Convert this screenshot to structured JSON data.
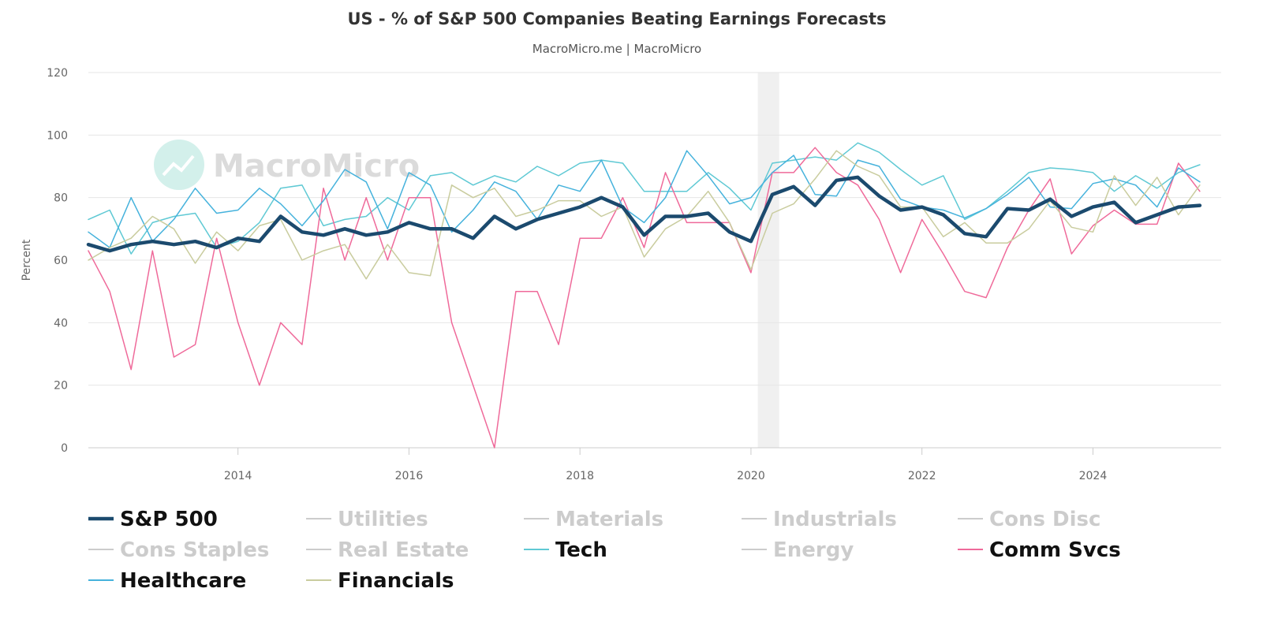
{
  "chart_data": {
    "type": "line",
    "title": "US - % of S&P 500 Companies Beating Earnings Forecasts",
    "subtitle": "MacroMicro.me | MacroMicro",
    "watermark": "MacroMicro",
    "ylabel": "Percent",
    "ylim": [
      0,
      120
    ],
    "yticks": [
      0,
      20,
      40,
      60,
      80,
      100,
      120
    ],
    "xlim": [
      2012.25,
      2025.5
    ],
    "xticks": [
      "2014",
      "2016",
      "2018",
      "2020",
      "2022",
      "2024"
    ],
    "recession_band": [
      2020.08,
      2020.33
    ],
    "grid": true,
    "legend_position": "bottom",
    "x": [
      2012.25,
      2012.5,
      2012.75,
      2013,
      2013.25,
      2013.5,
      2013.75,
      2014,
      2014.25,
      2014.5,
      2014.75,
      2015,
      2015.25,
      2015.5,
      2015.75,
      2016,
      2016.25,
      2016.5,
      2016.75,
      2017,
      2017.25,
      2017.5,
      2017.75,
      2018,
      2018.25,
      2018.5,
      2018.75,
      2019,
      2019.25,
      2019.5,
      2019.75,
      2020,
      2020.25,
      2020.5,
      2020.75,
      2021,
      2021.25,
      2021.5,
      2021.75,
      2022,
      2022.25,
      2022.5,
      2022.75,
      2023,
      2023.25,
      2023.5,
      2023.75,
      2024,
      2024.25,
      2024.5,
      2024.75,
      2025,
      2025.25
    ],
    "series": [
      {
        "name": "S&P 500",
        "color": "#1b4a6e",
        "visible": true,
        "width": 4.5,
        "values": [
          65,
          63,
          65,
          66,
          65,
          66,
          64,
          67,
          66,
          74,
          69,
          68,
          70,
          68,
          69,
          72,
          70,
          70,
          67,
          74,
          70,
          73,
          75,
          77,
          80,
          77,
          68,
          74,
          74,
          75,
          69,
          66,
          81,
          83.5,
          77.5,
          85.5,
          86.5,
          80.5,
          76,
          77,
          74.5,
          68.5,
          67.5,
          76.5,
          76,
          79.5,
          74,
          77,
          78.5,
          72,
          74.5,
          77,
          77.5
        ]
      },
      {
        "name": "Utilities",
        "color": "#cccccc",
        "visible": false
      },
      {
        "name": "Materials",
        "color": "#cccccc",
        "visible": false
      },
      {
        "name": "Industrials",
        "color": "#cccccc",
        "visible": false
      },
      {
        "name": "Cons Disc",
        "color": "#cccccc",
        "visible": false
      },
      {
        "name": "Cons Staples",
        "color": "#cccccc",
        "visible": false
      },
      {
        "name": "Real Estate",
        "color": "#cccccc",
        "visible": false
      },
      {
        "name": "Tech",
        "color": "#5fc9d4",
        "visible": true,
        "width": 1.5,
        "values": [
          73,
          76,
          62,
          72,
          74,
          75,
          64,
          66,
          72,
          83,
          84,
          71,
          73,
          74,
          80,
          76,
          87,
          88,
          84,
          87,
          85,
          90,
          87,
          91,
          92,
          91,
          82,
          82,
          82,
          88,
          83,
          76,
          91,
          92,
          93,
          92,
          97.5,
          94.5,
          89,
          84,
          87,
          73,
          76.5,
          82,
          88,
          89.5,
          89,
          88,
          82,
          87,
          83,
          88,
          90.5
        ]
      },
      {
        "name": "Energy",
        "color": "#cccccc",
        "visible": false
      },
      {
        "name": "Comm Svcs",
        "color": "#ef6a9a",
        "visible": true,
        "width": 1.5,
        "values": [
          63,
          50,
          25,
          63,
          29,
          33,
          67,
          40,
          20,
          40,
          33,
          83,
          60,
          80,
          60,
          80,
          80,
          40,
          20,
          0,
          50,
          50,
          33,
          67,
          67,
          80,
          64,
          88,
          72,
          72,
          72,
          56,
          88,
          88,
          96,
          88,
          84,
          73,
          56,
          73,
          62,
          50,
          48,
          64,
          76,
          86,
          62,
          71,
          76,
          71.5,
          71.5,
          91,
          82
        ]
      },
      {
        "name": "Healthcare",
        "color": "#45b2dc",
        "visible": true,
        "width": 1.5,
        "values": [
          69,
          64,
          80,
          66,
          73,
          83,
          75,
          76,
          83,
          78,
          71,
          79,
          89,
          85,
          70,
          88,
          84,
          69,
          76,
          85,
          82,
          73,
          84,
          82,
          92,
          77,
          72,
          80,
          95,
          87,
          78,
          80,
          88,
          93.5,
          81,
          80.5,
          92,
          90,
          79.5,
          77,
          76,
          73.5,
          76.5,
          81,
          86.5,
          77,
          76.5,
          84.5,
          86,
          84,
          77,
          89.5,
          85
        ]
      },
      {
        "name": "Financials",
        "color": "#c9cc9e",
        "visible": true,
        "width": 1.5,
        "values": [
          60,
          64,
          67,
          74,
          70,
          59,
          69,
          63,
          71,
          73,
          60,
          63,
          65,
          54,
          65,
          56,
          55,
          84,
          80,
          83,
          74,
          76,
          79,
          79,
          74,
          77,
          61,
          70,
          74,
          82,
          72,
          57,
          75,
          78,
          86,
          95,
          90,
          87,
          77,
          77,
          67.5,
          72,
          65.5,
          65.5,
          70,
          79,
          70.5,
          69,
          87,
          77.5,
          86.5,
          74.5,
          84
        ]
      }
    ]
  }
}
